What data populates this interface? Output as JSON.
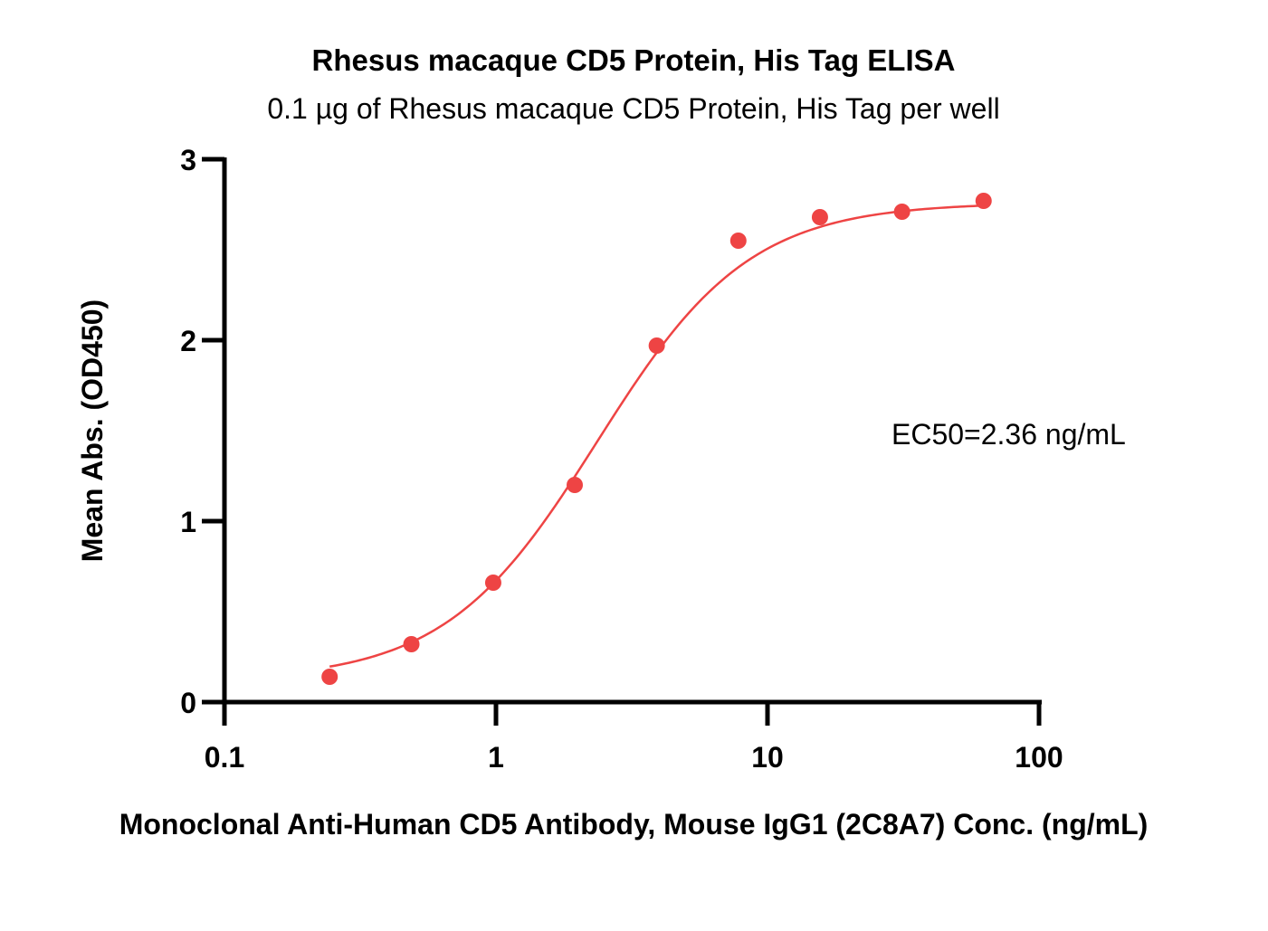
{
  "chart_data": {
    "type": "scatter",
    "title": "Rhesus macaque CD5 Protein, His Tag ELISA",
    "subtitle": "0.1 µg of Rhesus macaque CD5 Protein, His Tag per well",
    "xlabel": "Monoclonal Anti-Human CD5 Antibody, Mouse IgG1 (2C8A7) Conc. (ng/mL)",
    "ylabel": "Mean Abs. (OD450)",
    "x_scale": "log",
    "xlim": [
      0.1,
      100
    ],
    "ylim": [
      0,
      3
    ],
    "x_ticks": [
      0.1,
      1,
      10,
      100
    ],
    "x_tick_labels": [
      "0.1",
      "1",
      "10",
      "100"
    ],
    "y_ticks": [
      0,
      1,
      2,
      3
    ],
    "y_tick_labels": [
      "0",
      "1",
      "2",
      "3"
    ],
    "grid": false,
    "series": [
      {
        "color": "#ee4444",
        "x": [
          0.244,
          0.488,
          0.977,
          1.95,
          3.91,
          7.81,
          15.6,
          31.3,
          62.5
        ],
        "y": [
          0.14,
          0.32,
          0.66,
          1.2,
          1.97,
          2.55,
          2.68,
          2.71,
          2.77
        ],
        "fit": {
          "model": "4PL",
          "bottom": 0.12,
          "top": 2.76,
          "ec50": 2.36,
          "hill": 1.55
        }
      }
    ],
    "annotation": "EC50=2.36 ng/mL"
  }
}
